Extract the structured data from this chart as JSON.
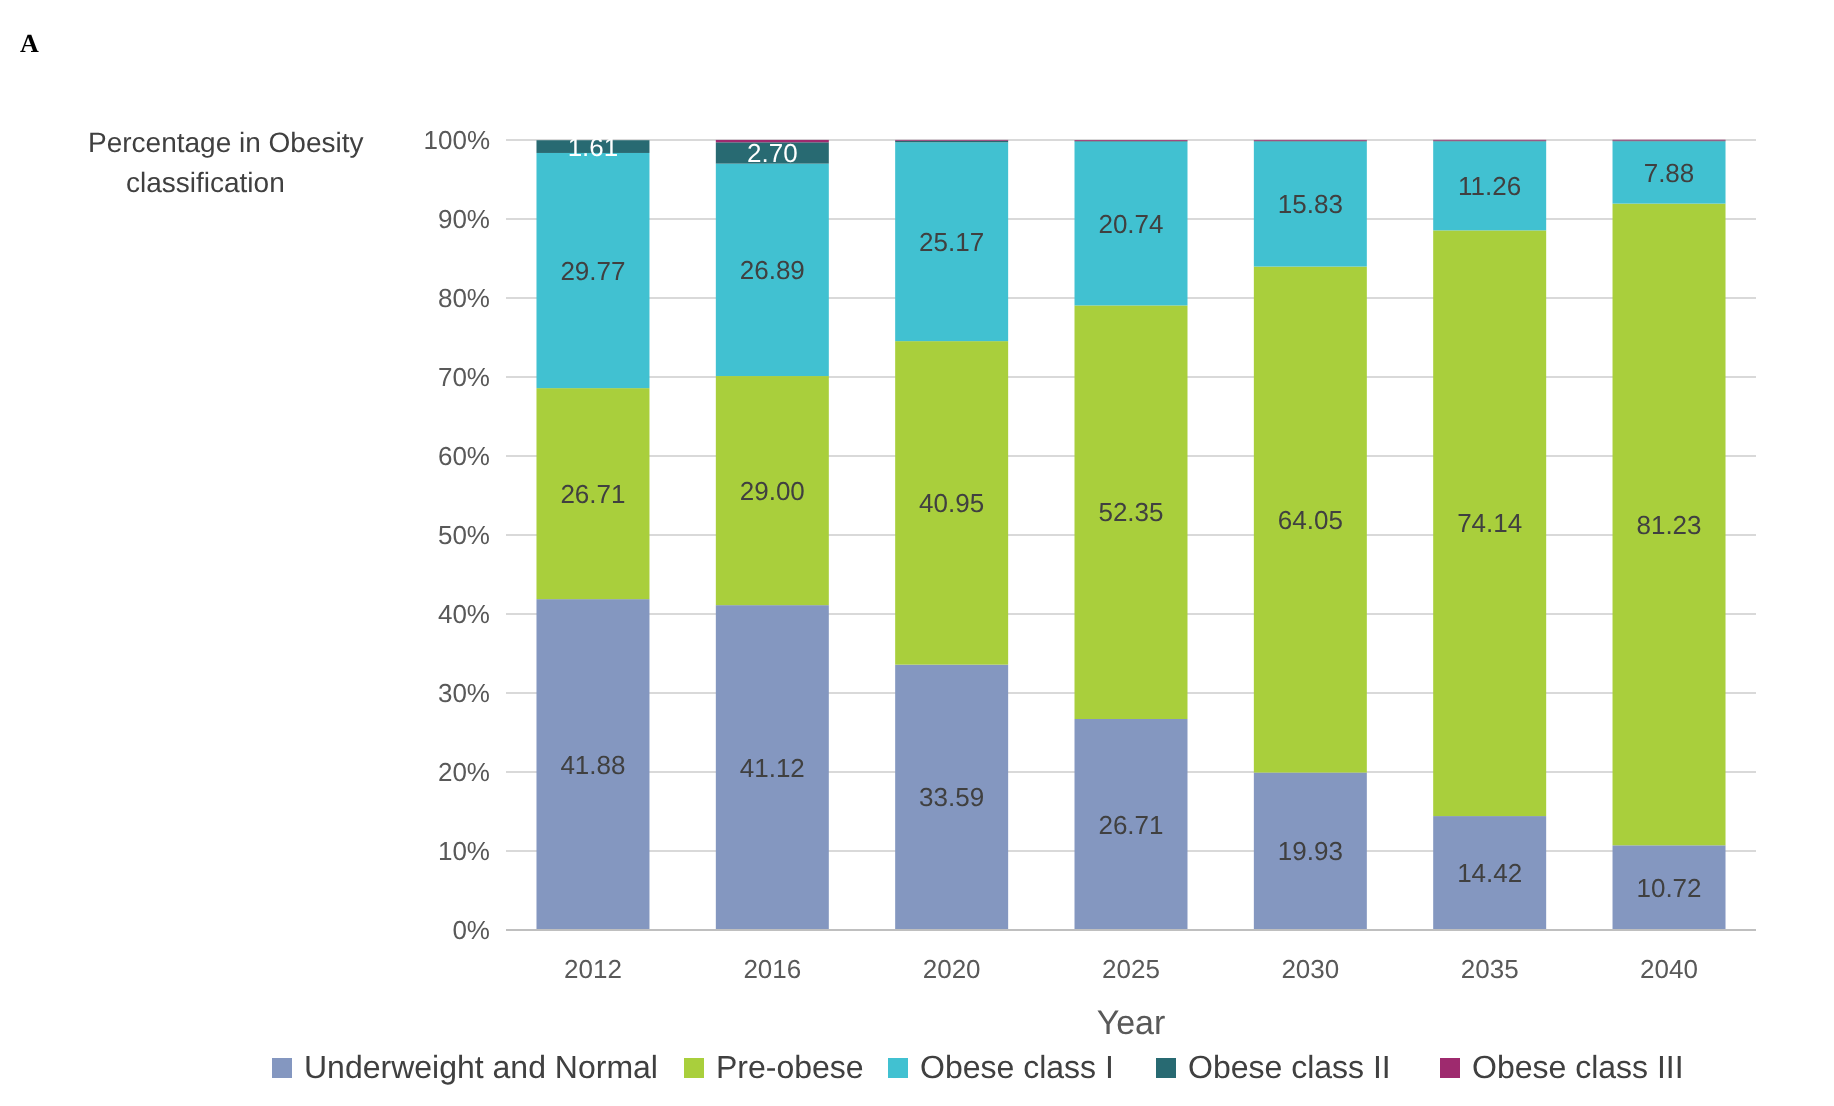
{
  "chart_data": {
    "type": "bar",
    "stacked": true,
    "xlabel": "Year",
    "ylabel": "Percentage in Obesity classification",
    "annotations": [
      "A"
    ],
    "categories": [
      "2012",
      "2016",
      "2020",
      "2025",
      "2030",
      "2035",
      "2040"
    ],
    "ylim": [
      0,
      100
    ],
    "yticks": [
      {
        "value": 0,
        "label": "0%"
      },
      {
        "value": 10,
        "label": "10%"
      },
      {
        "value": 20,
        "label": "20%"
      },
      {
        "value": 30,
        "label": "30%"
      },
      {
        "value": 40,
        "label": "40%"
      },
      {
        "value": 50,
        "label": "50%"
      },
      {
        "value": 60,
        "label": "60%"
      },
      {
        "value": 70,
        "label": "70%"
      },
      {
        "value": 80,
        "label": "80%"
      },
      {
        "value": 90,
        "label": "90%"
      },
      {
        "value": 100,
        "label": "100%"
      }
    ],
    "grid": "y",
    "legend": "bottom",
    "series": [
      {
        "name": "Underweight and Normal",
        "color": "#8497c0",
        "values": [
          41.88,
          41.12,
          33.59,
          26.71,
          19.93,
          14.42,
          10.72
        ],
        "value_labels": [
          "41.88",
          "41.12",
          "33.59",
          "26.71",
          "19.93",
          "14.42",
          "10.72"
        ]
      },
      {
        "name": "Pre-obese",
        "color": "#a9cf3c",
        "values": [
          26.71,
          29.0,
          40.95,
          52.35,
          64.05,
          74.14,
          81.23
        ],
        "value_labels": [
          "26.71",
          "29.00",
          "40.95",
          "52.35",
          "64.05",
          "74.14",
          "81.23"
        ]
      },
      {
        "name": "Obese class I",
        "color": "#41c1d1",
        "values": [
          29.77,
          26.89,
          25.17,
          20.74,
          15.83,
          11.26,
          7.88
        ],
        "value_labels": [
          "29.77",
          "26.89",
          "25.17",
          "20.74",
          "15.83",
          "11.26",
          "7.88"
        ]
      },
      {
        "name": "Obese class II",
        "color": "#286a72",
        "values": [
          1.61,
          2.7,
          0.2,
          0.1,
          0.1,
          0.1,
          0.1
        ],
        "value_labels": [
          "1.61",
          "2.70",
          null,
          null,
          null,
          null,
          null
        ]
      },
      {
        "name": "Obese class III",
        "color": "#9e2a6e",
        "values": [
          null,
          0.3,
          0.1,
          0.1,
          0.1,
          0.1,
          0.1
        ]
      }
    ]
  }
}
